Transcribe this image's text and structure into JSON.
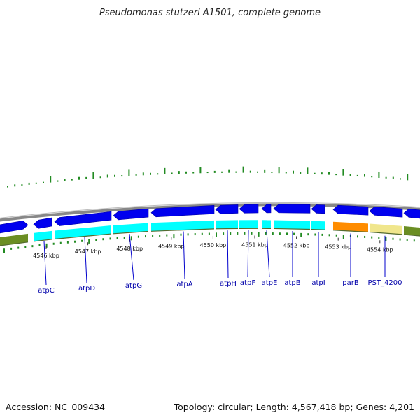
{
  "title": "Pseudomonas stutzeri A1501, complete genome",
  "footer": {
    "accession": "Accession: NC_009434",
    "topology": "Topology: circular; Length: 4,567,418 bp; Genes: 4,201"
  },
  "colors": {
    "backbone": "#888888",
    "gene": "#0000ee",
    "cds": "#00ffff",
    "olive": "#6b8e23",
    "orange": "#ff8c00",
    "khaki": "#f0e68c",
    "ticks": "#228b22",
    "label_line": "#0000cc"
  },
  "ticks": [
    {
      "label": "4546 kbp",
      "kbp": 4546
    },
    {
      "label": "4547 kbp",
      "kbp": 4547
    },
    {
      "label": "4548 kbp",
      "kbp": 4548
    },
    {
      "label": "4549 kbp",
      "kbp": 4549
    },
    {
      "label": "4550 kbp",
      "kbp": 4550
    },
    {
      "label": "4551 kbp",
      "kbp": 4551
    },
    {
      "label": "4552 kbp",
      "kbp": 4552
    },
    {
      "label": "4553 kbp",
      "kbp": 4553
    },
    {
      "label": "4554 kbp",
      "kbp": 4554
    }
  ],
  "genes": [
    {
      "name": "atpC"
    },
    {
      "name": "atpD"
    },
    {
      "name": "atpG"
    },
    {
      "name": "atpA"
    },
    {
      "name": "atpH"
    },
    {
      "name": "atpF"
    },
    {
      "name": "atpE"
    },
    {
      "name": "atpB"
    },
    {
      "name": "atpI"
    },
    {
      "name": "parB"
    },
    {
      "name": "PST_4200"
    }
  ]
}
